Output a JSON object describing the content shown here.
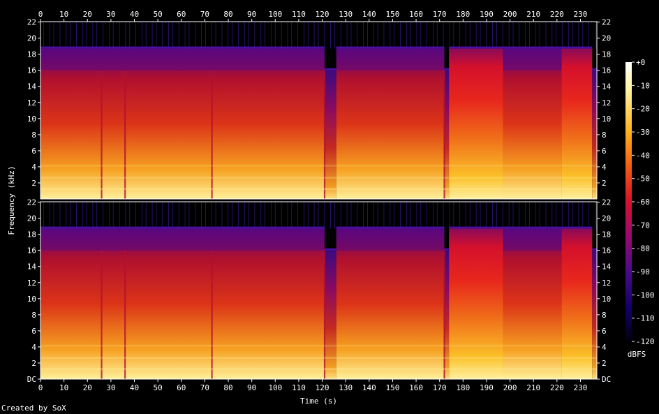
{
  "chart_data": {
    "type": "heatmap",
    "subtype": "spectrogram",
    "channels": 2,
    "xlabel": "Time (s)",
    "ylabel": "Frequency (kHz)",
    "x_range_s": [
      0,
      237
    ],
    "x_ticks": [
      0,
      10,
      20,
      30,
      40,
      50,
      60,
      70,
      80,
      90,
      100,
      110,
      120,
      130,
      140,
      150,
      160,
      170,
      180,
      190,
      200,
      210,
      220,
      230
    ],
    "y_range_khz": [
      0,
      22.05
    ],
    "y_ticks_upper": [
      "2",
      "4",
      "6",
      "8",
      "10",
      "12",
      "14",
      "16",
      "18",
      "20",
      "22"
    ],
    "y_ticks_lower": [
      "DC",
      "2",
      "4",
      "6",
      "8",
      "10",
      "12",
      "14",
      "16",
      "18",
      "20",
      "22"
    ],
    "colorbar": {
      "label": "dBFS",
      "ticks": [
        "+0",
        "-10",
        "-20",
        "-30",
        "-40",
        "-50",
        "-60",
        "-70",
        "-80",
        "-90",
        "-100",
        "-110",
        "-120"
      ],
      "range_db": [
        -120,
        0
      ]
    },
    "segments": [
      {
        "start_s": 0,
        "end_s": 121,
        "cutoff_khz": 18.7,
        "level": 0.82
      },
      {
        "start_s": 121,
        "end_s": 126,
        "cutoff_khz": 16.0,
        "level": 0.55
      },
      {
        "start_s": 126,
        "end_s": 172,
        "cutoff_khz": 18.7,
        "level": 0.8
      },
      {
        "start_s": 172,
        "end_s": 174,
        "cutoff_khz": 16.0,
        "level": 0.45
      },
      {
        "start_s": 174,
        "end_s": 197,
        "cutoff_khz": 18.7,
        "level": 0.92
      },
      {
        "start_s": 197,
        "end_s": 222,
        "cutoff_khz": 18.7,
        "level": 0.78
      },
      {
        "start_s": 222,
        "end_s": 235,
        "cutoff_khz": 18.7,
        "level": 0.92
      },
      {
        "start_s": 235,
        "end_s": 237,
        "cutoff_khz": 16.0,
        "level": 0.4
      }
    ],
    "vertical_dips_s": [
      26,
      36,
      73,
      121,
      172
    ]
  },
  "footer": {
    "credit": "Created by SoX"
  }
}
